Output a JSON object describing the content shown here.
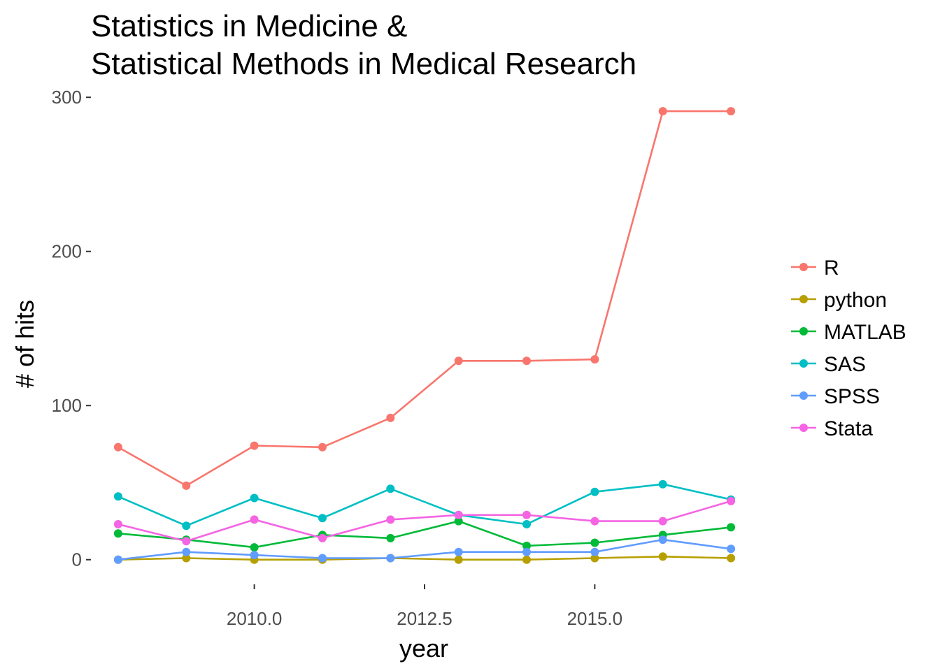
{
  "chart_data": {
    "type": "line",
    "title_lines": [
      "Statistics in Medicine &",
      "Statistical Methods in Medical Research"
    ],
    "xlabel": "year",
    "ylabel": "# of hits",
    "xlim": [
      2007.6,
      2017.4
    ],
    "ylim": [
      -16,
      306
    ],
    "x_ticks": [
      2010,
      2012.5,
      2015
    ],
    "x_tick_labels": [
      "2010.0",
      "2012.5",
      "2015.0"
    ],
    "y_ticks": [
      0,
      100,
      200,
      300
    ],
    "y_tick_labels": [
      "0",
      "100",
      "200",
      "300"
    ],
    "grid": false,
    "legend_position": "right",
    "x": [
      2008,
      2009,
      2010,
      2011,
      2012,
      2013,
      2014,
      2015,
      2016,
      2017
    ],
    "series": [
      {
        "name": "R",
        "color": "#F8766D",
        "values": [
          73,
          48,
          74,
          73,
          92,
          129,
          129,
          130,
          291,
          291
        ]
      },
      {
        "name": "python",
        "color": "#B79F00",
        "values": [
          0,
          1,
          0,
          0,
          1,
          0,
          0,
          1,
          2,
          1
        ]
      },
      {
        "name": "MATLAB",
        "color": "#00BA38",
        "values": [
          17,
          13,
          8,
          16,
          14,
          25,
          9,
          11,
          16,
          21
        ]
      },
      {
        "name": "SAS",
        "color": "#00BFC4",
        "values": [
          41,
          22,
          40,
          27,
          46,
          29,
          23,
          44,
          49,
          39
        ]
      },
      {
        "name": "SPSS",
        "color": "#619CFF",
        "values": [
          0,
          5,
          3,
          1,
          1,
          5,
          5,
          5,
          13,
          7
        ]
      },
      {
        "name": "Stata",
        "color": "#F564E3",
        "values": [
          23,
          12,
          26,
          14,
          26,
          29,
          29,
          25,
          25,
          38
        ]
      }
    ]
  }
}
